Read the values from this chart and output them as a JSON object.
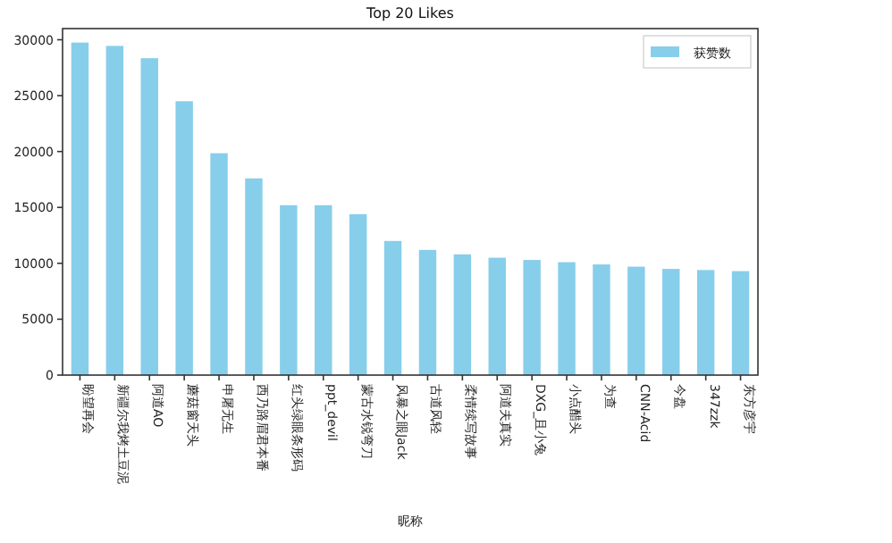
{
  "chart_data": {
    "type": "bar",
    "title": "Top 20 Likes",
    "xlabel": "昵称",
    "categories": [
      "盼望再会",
      "新疆尔我烤土豆泥",
      "阿道AO",
      "蘑菇窗天头",
      "申屠无生",
      "西乃路眉君本番",
      "红头绿眼条形码",
      "ppt_devil",
      "蒙古水锐弯刀",
      "风暴之眼Jack",
      "古道风轻",
      "柔情续写故事",
      "阿道夫真实",
      "DXG_且小兔",
      "小点醋头",
      "为查",
      "CNN-Acid",
      "今盘",
      "347zzk",
      "东方彦宇"
    ],
    "series": [
      {
        "name": "获赞数",
        "color": "#87ceeb",
        "values": [
          29750,
          29450,
          28350,
          24500,
          19850,
          17600,
          15200,
          15200,
          14400,
          12000,
          11200,
          10800,
          10500,
          10300,
          10100,
          9900,
          9700,
          9500,
          9400,
          9300
        ]
      }
    ],
    "ylim": [
      0,
      31000
    ],
    "yticks": [
      0,
      5000,
      10000,
      15000,
      20000,
      25000,
      30000
    ],
    "legend": "top right"
  }
}
